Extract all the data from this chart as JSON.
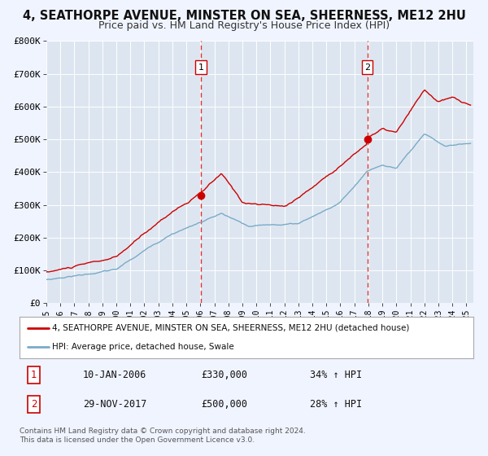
{
  "title": "4, SEATHORPE AVENUE, MINSTER ON SEA, SHEERNESS, ME12 2HU",
  "subtitle": "Price paid vs. HM Land Registry's House Price Index (HPI)",
  "title_fontsize": 10.5,
  "subtitle_fontsize": 9,
  "background_color": "#f0f4ff",
  "plot_bg_color": "#dde6f0",
  "red_line_color": "#cc0000",
  "blue_line_color": "#7aaac8",
  "marker1_date_x": 2006.04,
  "marker1_y": 330000,
  "marker2_date_x": 2017.92,
  "marker2_y": 500000,
  "vline1_x": 2006.04,
  "vline2_x": 2017.92,
  "ylim": [
    0,
    800000
  ],
  "xlim_start": 1995,
  "xlim_end": 2025.5,
  "ytick_labels": [
    "£0",
    "£100K",
    "£200K",
    "£300K",
    "£400K",
    "£500K",
    "£600K",
    "£700K",
    "£800K"
  ],
  "ytick_values": [
    0,
    100000,
    200000,
    300000,
    400000,
    500000,
    600000,
    700000,
    800000
  ],
  "xtick_values": [
    1995,
    1996,
    1997,
    1998,
    1999,
    2000,
    2001,
    2002,
    2003,
    2004,
    2005,
    2006,
    2007,
    2008,
    2009,
    2010,
    2011,
    2012,
    2013,
    2014,
    2015,
    2016,
    2017,
    2018,
    2019,
    2020,
    2021,
    2022,
    2023,
    2024,
    2025
  ],
  "legend_label_red": "4, SEATHORPE AVENUE, MINSTER ON SEA, SHEERNESS, ME12 2HU (detached house)",
  "legend_label_blue": "HPI: Average price, detached house, Swale",
  "annotation1_label": "1",
  "annotation2_label": "2",
  "table_row1": [
    "1",
    "10-JAN-2006",
    "£330,000",
    "34% ↑ HPI"
  ],
  "table_row2": [
    "2",
    "29-NOV-2017",
    "£500,000",
    "28% ↑ HPI"
  ],
  "footer_text": "Contains HM Land Registry data © Crown copyright and database right 2024.\nThis data is licensed under the Open Government Licence v3.0.",
  "grid_color": "#ffffff",
  "vline_color": "#dd3333"
}
